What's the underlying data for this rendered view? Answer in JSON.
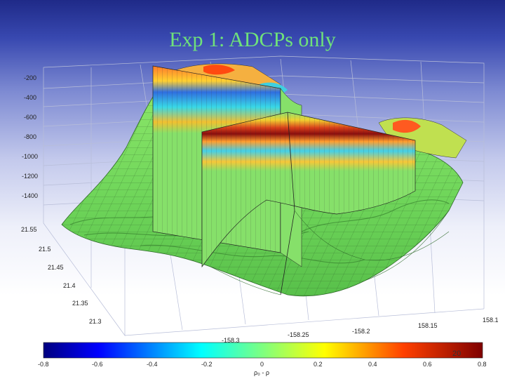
{
  "slide": {
    "title": "Exp 1: ADCPs only",
    "page_number": "20"
  },
  "chart_data": {
    "type": "surface3d",
    "title": "Exp 1: ADCPs only",
    "z_axis": {
      "ticks": [
        "-200",
        "-400",
        "-600",
        "-800",
        "-1000",
        "-1200",
        "-1400"
      ]
    },
    "y_axis": {
      "ticks": [
        "21.55",
        "21.5",
        "21.45",
        "21.4",
        "21.35",
        "21.3"
      ]
    },
    "x_axis": {
      "ticks": [
        "-158.3",
        "-158.25",
        "-158.2",
        "158.15",
        "158.1"
      ]
    },
    "colorbar": {
      "label": "ρ₀ - ρ",
      "ticks": [
        "-0.8",
        "-0.6",
        "-0.4",
        "-0.2",
        "0",
        "0.2",
        "0.4",
        "0.6",
        "0.8"
      ],
      "range": [
        -0.8,
        0.8
      ],
      "colors": [
        "#00007f",
        "#0000ff",
        "#007fff",
        "#00ffff",
        "#7fff7f",
        "#ffff00",
        "#ff7f00",
        "#ff0000",
        "#7f0000"
      ]
    },
    "surface_color": "#7fe35a",
    "grid": true
  }
}
